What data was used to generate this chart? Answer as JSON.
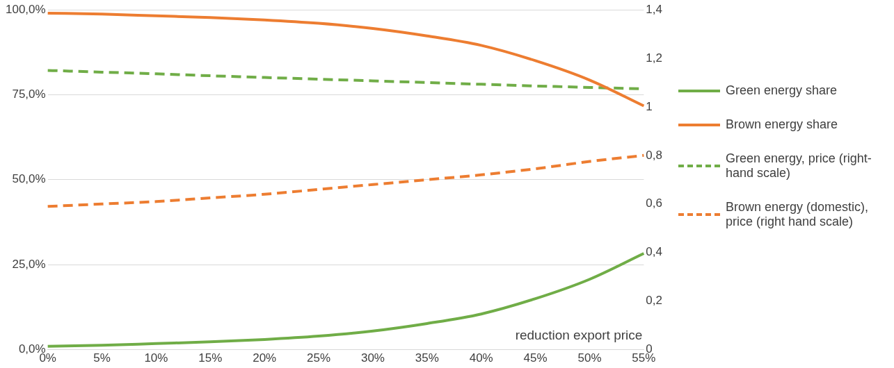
{
  "chart_data": {
    "type": "line",
    "xlabel": "reduction export price",
    "categories": [
      "0%",
      "5%",
      "10%",
      "15%",
      "20%",
      "25%",
      "30%",
      "35%",
      "40%",
      "45%",
      "50%",
      "55%"
    ],
    "series": [
      {
        "name": "Green energy share",
        "color": "#70ad47",
        "line_style": "solid",
        "values": [
          1.0,
          1.3,
          1.8,
          2.3,
          3.0,
          4.0,
          5.5,
          7.7,
          10.5,
          15.0,
          20.7,
          28.3
        ]
      },
      {
        "name": "Brown energy share",
        "color": "#ed7d31",
        "line_style": "solid",
        "values": [
          99.0,
          98.7,
          98.2,
          97.7,
          97.0,
          96.0,
          94.5,
          92.3,
          89.5,
          85.0,
          79.3,
          71.7
        ]
      },
      {
        "name": "Green energy, price (right-hand scale)",
        "color": "#70ad47",
        "line_style": "dashed",
        "axis": "y2",
        "values": [
          1.15,
          1.143,
          1.136,
          1.128,
          1.121,
          1.114,
          1.107,
          1.1,
          1.093,
          1.086,
          1.08,
          1.074
        ]
      },
      {
        "name": "Brown energy (domestic), price (right hand scale)",
        "color": "#ed7d31",
        "line_style": "dashed",
        "axis": "y2",
        "values": [
          0.59,
          0.6,
          0.61,
          0.625,
          0.64,
          0.66,
          0.68,
          0.7,
          0.72,
          0.745,
          0.775,
          0.8
        ]
      }
    ],
    "ylim": [
      0,
      100
    ],
    "yticks": [
      {
        "value": 0,
        "label": "0,0%"
      },
      {
        "value": 25,
        "label": "25,0%"
      },
      {
        "value": 50,
        "label": "50,0%"
      },
      {
        "value": 75,
        "label": "75,0%"
      },
      {
        "value": 100,
        "label": "100,0%"
      }
    ],
    "y2lim": [
      0,
      1.4
    ],
    "y2ticks": [
      0,
      {
        "value": 0.2,
        "label": "0,2"
      },
      {
        "value": 0.4,
        "label": "0,4"
      },
      {
        "value": 0.6,
        "label": "0,6"
      },
      {
        "value": 0.8,
        "label": "0,8"
      },
      1,
      {
        "value": 1.2,
        "label": "1,2"
      },
      {
        "value": 1.4,
        "label": "1,4"
      }
    ],
    "grid": "y",
    "legend": "right",
    "marker": "none"
  }
}
